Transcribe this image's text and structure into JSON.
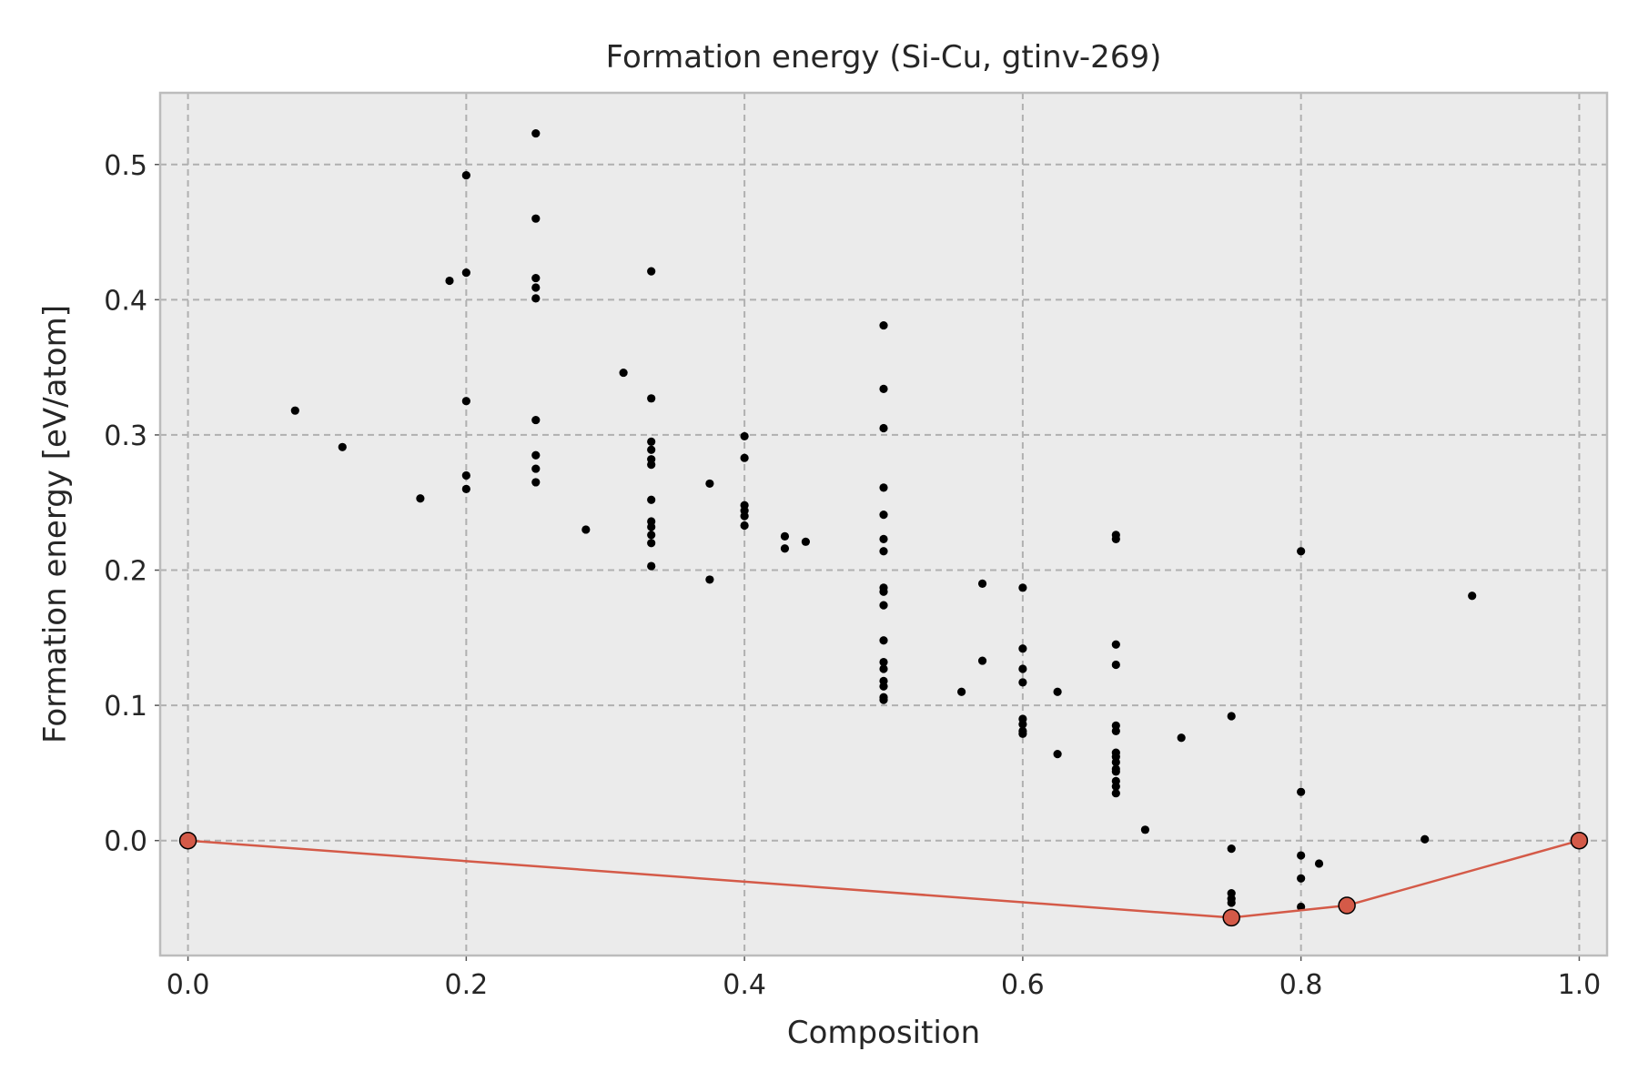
{
  "chart_data": {
    "type": "scatter",
    "title": "Formation energy (Si-Cu, gtinv-269)",
    "xlabel": "Composition",
    "ylabel": "Formation energy [eV/atom]",
    "xlim": [
      -0.02,
      1.02
    ],
    "ylim": [
      -0.085,
      0.553
    ],
    "grid": true,
    "x_ticks": [
      {
        "value": 0.0,
        "label": "0.0"
      },
      {
        "value": 0.2,
        "label": "0.2"
      },
      {
        "value": 0.4,
        "label": "0.4"
      },
      {
        "value": 0.6,
        "label": "0.6"
      },
      {
        "value": 0.8,
        "label": "0.8"
      },
      {
        "value": 1.0,
        "label": "1.0"
      }
    ],
    "y_ticks": [
      {
        "value": 0.0,
        "label": "0.0"
      },
      {
        "value": 0.1,
        "label": "0.1"
      },
      {
        "value": 0.2,
        "label": "0.2"
      },
      {
        "value": 0.3,
        "label": "0.3"
      },
      {
        "value": 0.4,
        "label": "0.4"
      },
      {
        "value": 0.5,
        "label": "0.5"
      }
    ],
    "colors": {
      "background": "#ebebeb",
      "frame": "#bcbcbc",
      "points": "#000000",
      "hull": "#d45a48"
    },
    "series": [
      {
        "points": [
          [
            0.077,
            0.318
          ],
          [
            0.111,
            0.291
          ],
          [
            0.167,
            0.253
          ],
          [
            0.188,
            0.414
          ],
          [
            0.2,
            0.492
          ],
          [
            0.2,
            0.42
          ],
          [
            0.2,
            0.325
          ],
          [
            0.2,
            0.27
          ],
          [
            0.2,
            0.26
          ],
          [
            0.25,
            0.523
          ],
          [
            0.25,
            0.46
          ],
          [
            0.25,
            0.416
          ],
          [
            0.25,
            0.409
          ],
          [
            0.25,
            0.401
          ],
          [
            0.25,
            0.311
          ],
          [
            0.25,
            0.285
          ],
          [
            0.25,
            0.275
          ],
          [
            0.25,
            0.265
          ],
          [
            0.286,
            0.23
          ],
          [
            0.313,
            0.346
          ],
          [
            0.333,
            0.421
          ],
          [
            0.333,
            0.327
          ],
          [
            0.333,
            0.295
          ],
          [
            0.333,
            0.289
          ],
          [
            0.333,
            0.282
          ],
          [
            0.333,
            0.278
          ],
          [
            0.333,
            0.252
          ],
          [
            0.333,
            0.236
          ],
          [
            0.333,
            0.232
          ],
          [
            0.333,
            0.226
          ],
          [
            0.333,
            0.22
          ],
          [
            0.333,
            0.203
          ],
          [
            0.375,
            0.264
          ],
          [
            0.375,
            0.193
          ],
          [
            0.4,
            0.299
          ],
          [
            0.4,
            0.283
          ],
          [
            0.4,
            0.248
          ],
          [
            0.4,
            0.244
          ],
          [
            0.4,
            0.24
          ],
          [
            0.4,
            0.233
          ],
          [
            0.429,
            0.225
          ],
          [
            0.429,
            0.216
          ],
          [
            0.444,
            0.221
          ],
          [
            0.5,
            0.381
          ],
          [
            0.5,
            0.334
          ],
          [
            0.5,
            0.305
          ],
          [
            0.5,
            0.261
          ],
          [
            0.5,
            0.241
          ],
          [
            0.5,
            0.223
          ],
          [
            0.5,
            0.214
          ],
          [
            0.5,
            0.187
          ],
          [
            0.5,
            0.184
          ],
          [
            0.5,
            0.174
          ],
          [
            0.5,
            0.148
          ],
          [
            0.5,
            0.132
          ],
          [
            0.5,
            0.127
          ],
          [
            0.5,
            0.118
          ],
          [
            0.5,
            0.114
          ],
          [
            0.5,
            0.106
          ],
          [
            0.5,
            0.104
          ],
          [
            0.556,
            0.11
          ],
          [
            0.571,
            0.19
          ],
          [
            0.571,
            0.133
          ],
          [
            0.6,
            0.187
          ],
          [
            0.6,
            0.142
          ],
          [
            0.6,
            0.127
          ],
          [
            0.6,
            0.117
          ],
          [
            0.6,
            0.09
          ],
          [
            0.6,
            0.086
          ],
          [
            0.6,
            0.081
          ],
          [
            0.6,
            0.079
          ],
          [
            0.625,
            0.11
          ],
          [
            0.625,
            0.064
          ],
          [
            0.667,
            0.226
          ],
          [
            0.667,
            0.223
          ],
          [
            0.667,
            0.145
          ],
          [
            0.667,
            0.13
          ],
          [
            0.667,
            0.085
          ],
          [
            0.667,
            0.081
          ],
          [
            0.667,
            0.065
          ],
          [
            0.667,
            0.062
          ],
          [
            0.667,
            0.058
          ],
          [
            0.667,
            0.053
          ],
          [
            0.667,
            0.051
          ],
          [
            0.667,
            0.044
          ],
          [
            0.667,
            0.04
          ],
          [
            0.667,
            0.035
          ],
          [
            0.688,
            0.008
          ],
          [
            0.714,
            0.076
          ],
          [
            0.75,
            0.092
          ],
          [
            0.75,
            -0.006
          ],
          [
            0.75,
            -0.039
          ],
          [
            0.75,
            -0.043
          ],
          [
            0.75,
            -0.046
          ],
          [
            0.8,
            0.214
          ],
          [
            0.8,
            0.036
          ],
          [
            0.8,
            -0.011
          ],
          [
            0.8,
            -0.028
          ],
          [
            0.8,
            -0.049
          ],
          [
            0.813,
            -0.017
          ],
          [
            0.889,
            0.001
          ],
          [
            0.923,
            0.181
          ]
        ]
      },
      {
        "type": "line",
        "points": [
          [
            0.0,
            0.0
          ],
          [
            0.75,
            -0.057
          ],
          [
            0.833,
            -0.048
          ],
          [
            1.0,
            0.0
          ]
        ]
      }
    ]
  }
}
